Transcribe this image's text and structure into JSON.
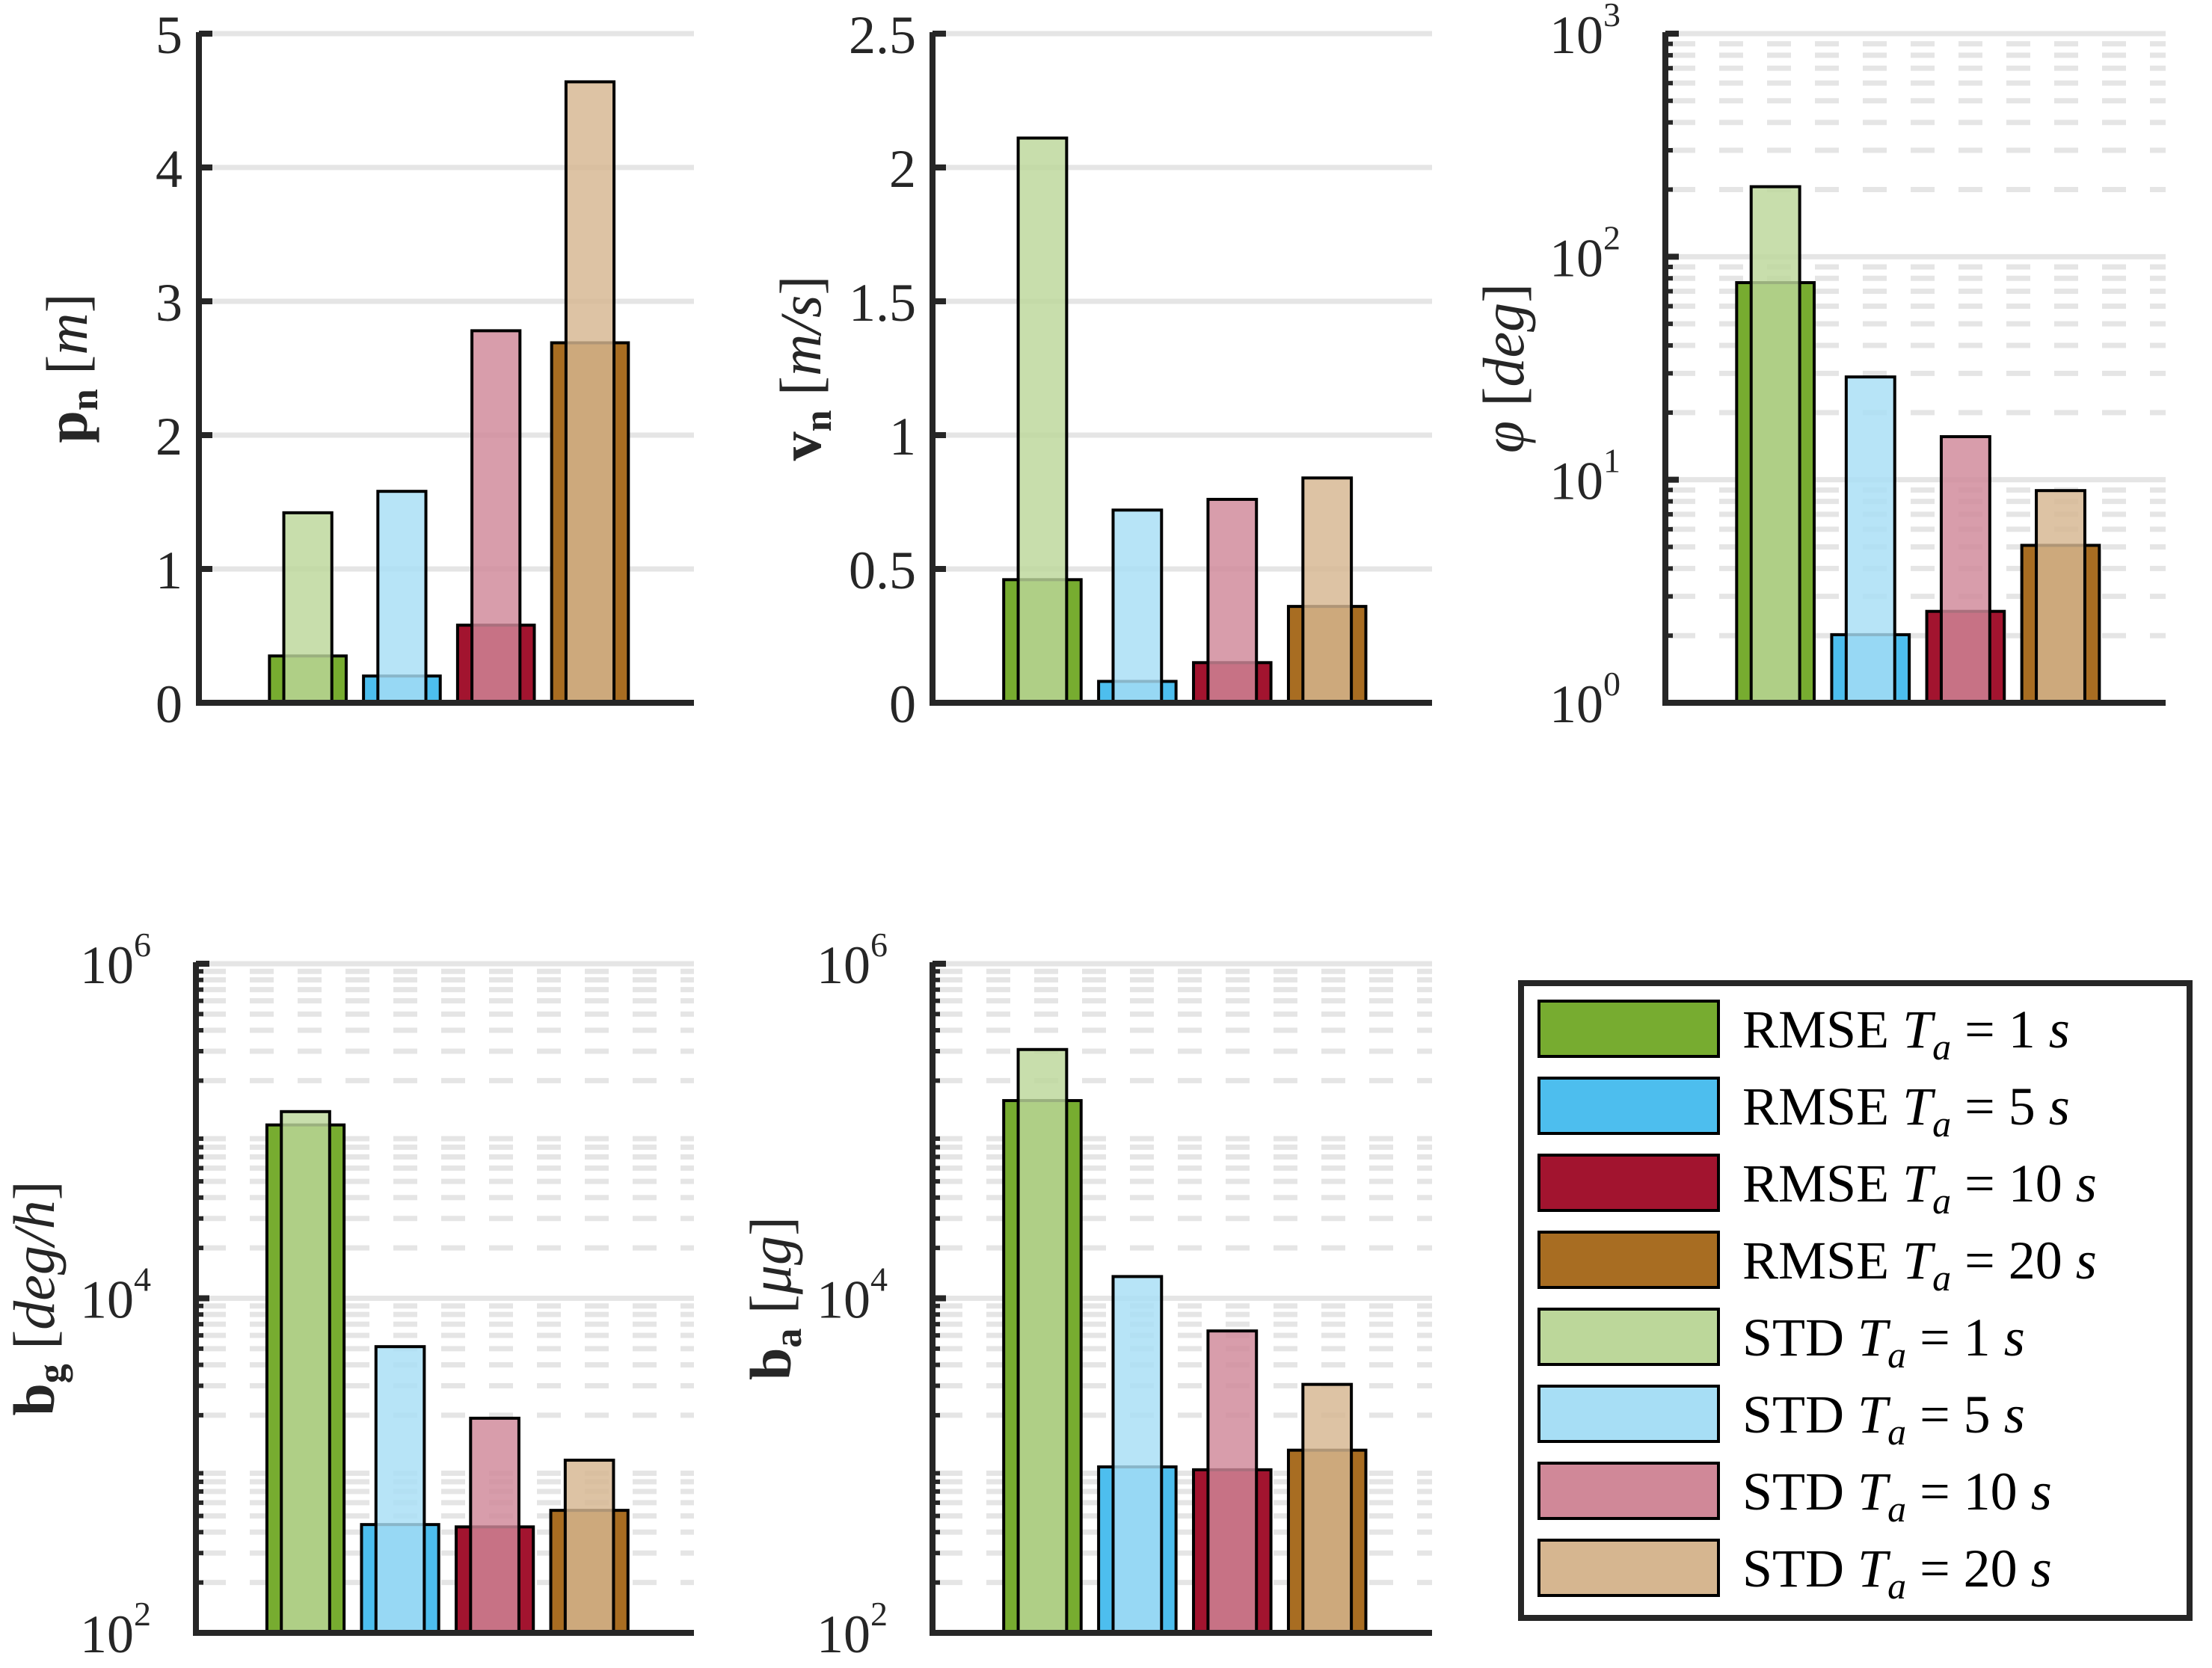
{
  "chart_data": [
    {
      "type": "bar",
      "id": "pn",
      "scale": "linear",
      "ylabel": {
        "sym": "p",
        "sub": "n",
        "unit": "m"
      },
      "ylim": [
        0,
        5
      ],
      "yticks": [
        0,
        1,
        2,
        3,
        4,
        5
      ],
      "ytick_labels": [
        "0",
        "1",
        "2",
        "3",
        "4",
        "5"
      ],
      "grid": "major",
      "categories": [
        "Ta=1s",
        "Ta=5s",
        "Ta=10s",
        "Ta=20s"
      ],
      "series": [
        {
          "name": "RMSE",
          "values": [
            0.35,
            0.2,
            0.58,
            2.69
          ]
        },
        {
          "name": "STD",
          "values": [
            1.42,
            1.58,
            2.78,
            4.64
          ]
        }
      ]
    },
    {
      "type": "bar",
      "id": "vn",
      "scale": "linear",
      "ylabel": {
        "sym": "v",
        "sub": "n",
        "unit": "m/s"
      },
      "ylim": [
        0,
        2.5
      ],
      "yticks": [
        0,
        0.5,
        1,
        1.5,
        2,
        2.5
      ],
      "ytick_labels": [
        "0",
        "0.5",
        "1",
        "1.5",
        "2",
        "2.5"
      ],
      "grid": "major",
      "categories": [
        "Ta=1s",
        "Ta=5s",
        "Ta=10s",
        "Ta=20s"
      ],
      "series": [
        {
          "name": "RMSE",
          "values": [
            0.46,
            0.08,
            0.15,
            0.36
          ]
        },
        {
          "name": "STD",
          "values": [
            2.11,
            0.72,
            0.76,
            0.84
          ]
        }
      ]
    },
    {
      "type": "bar",
      "id": "phi",
      "scale": "log",
      "ylabel": {
        "sym": "φ",
        "sub": "",
        "unit": "deg"
      },
      "ylim": [
        1,
        1000
      ],
      "yticks": [
        1,
        10,
        100,
        1000
      ],
      "ytick_labels": [
        {
          "base": "10",
          "exp": "0"
        },
        {
          "base": "10",
          "exp": "1"
        },
        {
          "base": "10",
          "exp": "2"
        },
        {
          "base": "10",
          "exp": "3"
        }
      ],
      "grid": "major+minor",
      "categories": [
        "Ta=1s",
        "Ta=5s",
        "Ta=10s",
        "Ta=20s"
      ],
      "series": [
        {
          "name": "RMSE",
          "values": [
            76.5,
            2.02,
            2.57,
            5.08
          ]
        },
        {
          "name": "STD",
          "values": [
            206,
            28.9,
            15.6,
            8.94
          ]
        }
      ]
    },
    {
      "type": "bar",
      "id": "bg",
      "scale": "log",
      "ylabel": {
        "sym": "b",
        "sub": "g",
        "unit": "deg/h"
      },
      "ylim": [
        100,
        1000000
      ],
      "yticks": [
        100,
        10000,
        1000000
      ],
      "ytick_labels": [
        {
          "base": "10",
          "exp": "2"
        },
        {
          "base": "10",
          "exp": "4"
        },
        {
          "base": "10",
          "exp": "6"
        }
      ],
      "grid": "major+minor",
      "categories": [
        "Ta=1s",
        "Ta=5s",
        "Ta=10s",
        "Ta=20s"
      ],
      "series": [
        {
          "name": "RMSE",
          "values": [
            108700,
            444,
            430,
            540
          ]
        },
        {
          "name": "STD",
          "values": [
            130600,
            5140,
            1919,
            1077
          ]
        }
      ]
    },
    {
      "type": "bar",
      "id": "ba",
      "scale": "log",
      "ylabel": {
        "sym": "b",
        "sub": "a",
        "unit": "μg"
      },
      "ylim": [
        100,
        1000000
      ],
      "yticks": [
        100,
        10000,
        1000000
      ],
      "ytick_labels": [
        {
          "base": "10",
          "exp": "2"
        },
        {
          "base": "10",
          "exp": "4"
        },
        {
          "base": "10",
          "exp": "6"
        }
      ],
      "grid": "major+minor",
      "categories": [
        "Ta=1s",
        "Ta=5s",
        "Ta=10s",
        "Ta=20s"
      ],
      "series": [
        {
          "name": "RMSE",
          "values": [
            152000,
            982,
            944,
            1236
          ]
        },
        {
          "name": "STD",
          "values": [
            307000,
            13490,
            6380,
            3057
          ]
        }
      ]
    }
  ],
  "colors": {
    "rmse": [
      "#77AC30",
      "#4DBEEE",
      "#A2142F",
      "#A86D22"
    ],
    "std": [
      "#BCD79A",
      "#A7DEF5",
      "#D08898",
      "#D6B690"
    ],
    "axis": "#262626",
    "grid": "#E5E5E5"
  },
  "legend": {
    "position": "bottom-right",
    "items": [
      {
        "metric": "RMSE",
        "var": "T",
        "sub": "a",
        "value": "1",
        "unit": "s",
        "kind": "rmse",
        "idx": 0
      },
      {
        "metric": "RMSE",
        "var": "T",
        "sub": "a",
        "value": "5",
        "unit": "s",
        "kind": "rmse",
        "idx": 1
      },
      {
        "metric": "RMSE",
        "var": "T",
        "sub": "a",
        "value": "10",
        "unit": "s",
        "kind": "rmse",
        "idx": 2
      },
      {
        "metric": "RMSE",
        "var": "T",
        "sub": "a",
        "value": "20",
        "unit": "s",
        "kind": "rmse",
        "idx": 3
      },
      {
        "metric": "STD",
        "var": "T",
        "sub": "a",
        "value": "1",
        "unit": "s",
        "kind": "std",
        "idx": 0
      },
      {
        "metric": "STD",
        "var": "T",
        "sub": "a",
        "value": "5",
        "unit": "s",
        "kind": "std",
        "idx": 1
      },
      {
        "metric": "STD",
        "var": "T",
        "sub": "a",
        "value": "10",
        "unit": "s",
        "kind": "std",
        "idx": 2
      },
      {
        "metric": "STD",
        "var": "T",
        "sub": "a",
        "value": "20",
        "unit": "s",
        "kind": "std",
        "idx": 3
      }
    ]
  }
}
